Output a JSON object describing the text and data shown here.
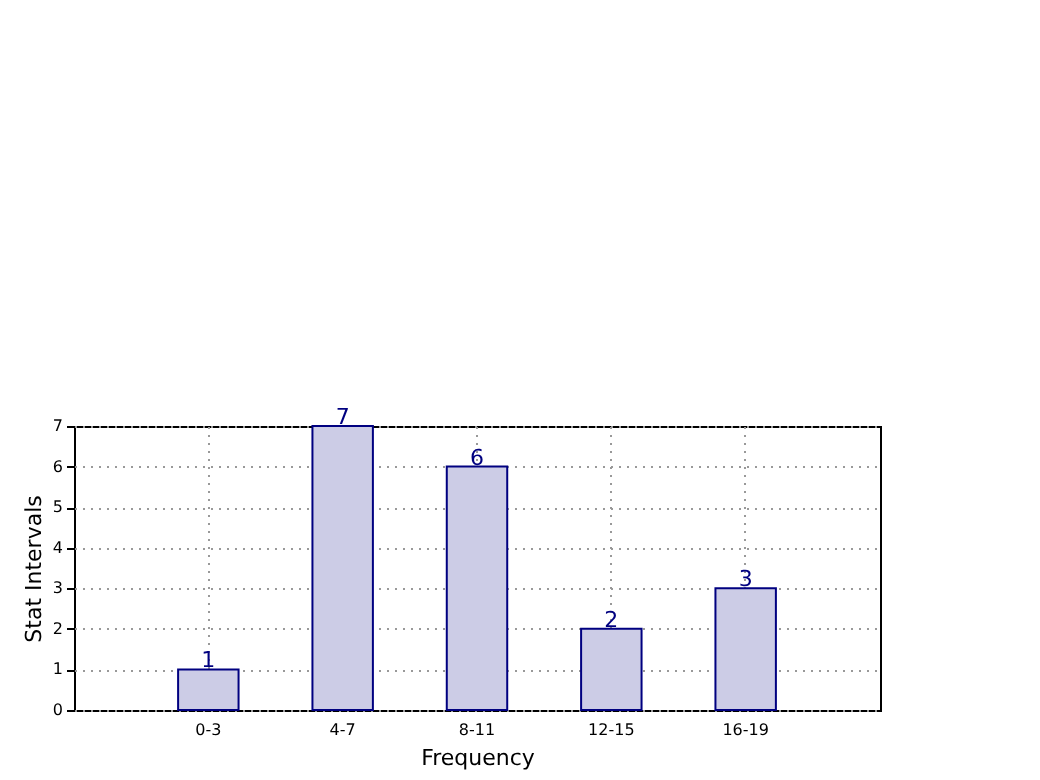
{
  "chart_data": {
    "type": "bar",
    "xlabel": "Frequency",
    "ylabel": "Stat Intervals",
    "categories": [
      "0-3",
      "4-7",
      "8-11",
      "12-15",
      "16-19"
    ],
    "values": [
      1,
      7,
      6,
      2,
      3
    ],
    "color": "#ccccE6",
    "ylim": [
      0,
      7
    ],
    "yticks": [
      0,
      1,
      2,
      3,
      4,
      5,
      6,
      7
    ],
    "grid": true,
    "data_labels": true
  }
}
